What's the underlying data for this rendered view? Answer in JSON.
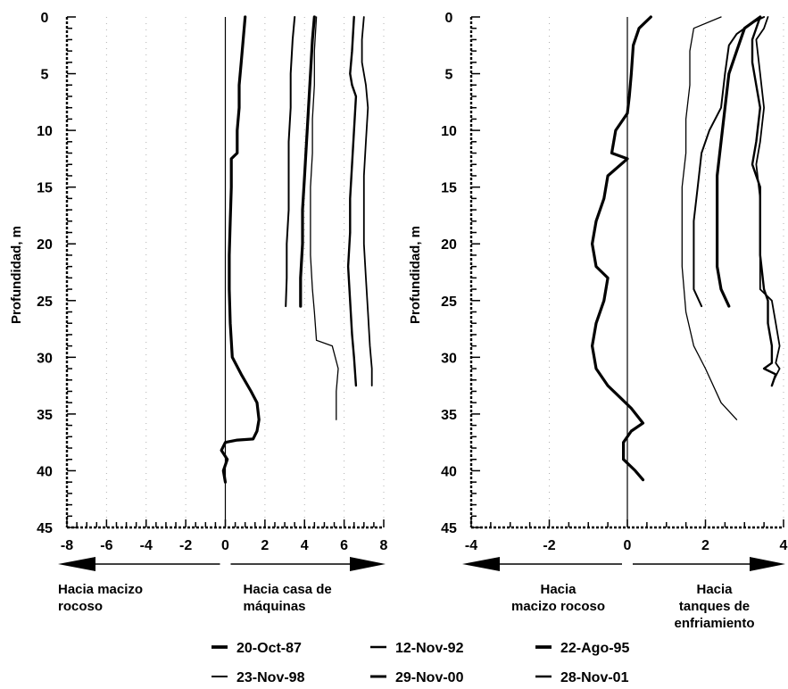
{
  "chart_data": [
    {
      "type": "line",
      "ylabel": "Profundidad, m",
      "xlim": [
        -8,
        8
      ],
      "ylim": [
        45,
        0
      ],
      "x_ticks": [
        -8,
        -6,
        -4,
        -2,
        0,
        2,
        4,
        6,
        8
      ],
      "y_ticks": [
        0,
        5,
        10,
        15,
        20,
        25,
        30,
        35,
        40,
        45
      ],
      "direction_labels": {
        "left": [
          "Hacia macizo",
          "rocoso"
        ],
        "right": [
          "Hacia  casa de",
          "máquinas"
        ]
      },
      "series": [
        {
          "name": "20-Oct-87",
          "points": [
            [
              1.0,
              0
            ],
            [
              0.9,
              2
            ],
            [
              0.8,
              4
            ],
            [
              0.7,
              6
            ],
            [
              0.7,
              8
            ],
            [
              0.6,
              10
            ],
            [
              0.6,
              12
            ],
            [
              0.3,
              12.5
            ],
            [
              0.3,
              15
            ],
            [
              0.25,
              18
            ],
            [
              0.2,
              21
            ],
            [
              0.2,
              24
            ],
            [
              0.25,
              27
            ],
            [
              0.35,
              30
            ],
            [
              0.8,
              31.5
            ],
            [
              1.3,
              33
            ],
            [
              1.6,
              34
            ],
            [
              1.7,
              35.5
            ],
            [
              1.6,
              36.5
            ],
            [
              1.4,
              37.2
            ],
            [
              0.6,
              37.3
            ],
            [
              0.0,
              37.5
            ],
            [
              -0.2,
              38.2
            ],
            [
              0.1,
              39
            ],
            [
              -0.1,
              40
            ],
            [
              0.0,
              41
            ]
          ]
        },
        {
          "name": "12-Nov-92",
          "points": [
            [
              3.5,
              0
            ],
            [
              3.4,
              2
            ],
            [
              3.3,
              5
            ],
            [
              3.3,
              8
            ],
            [
              3.2,
              11
            ],
            [
              3.2,
              14
            ],
            [
              3.2,
              17
            ],
            [
              3.1,
              20
            ],
            [
              3.1,
              23
            ],
            [
              3.05,
              25.5
            ]
          ]
        },
        {
          "name": "22-Ago-95",
          "points": [
            [
              4.5,
              0
            ],
            [
              4.4,
              2
            ],
            [
              4.3,
              5
            ],
            [
              4.2,
              8
            ],
            [
              4.1,
              11
            ],
            [
              4.0,
              14
            ],
            [
              3.9,
              17
            ],
            [
              3.9,
              20
            ],
            [
              3.8,
              23
            ],
            [
              3.8,
              25.5
            ]
          ]
        },
        {
          "name": "23-Nov-98",
          "points": [
            [
              4.6,
              0
            ],
            [
              4.5,
              3
            ],
            [
              4.5,
              6
            ],
            [
              4.4,
              9
            ],
            [
              4.4,
              12
            ],
            [
              4.3,
              15
            ],
            [
              4.3,
              18
            ],
            [
              4.3,
              21
            ],
            [
              4.4,
              24
            ],
            [
              4.5,
              26
            ],
            [
              4.6,
              28.5
            ],
            [
              5.4,
              29
            ],
            [
              5.7,
              31
            ],
            [
              5.6,
              33
            ],
            [
              5.6,
              35.5
            ]
          ]
        },
        {
          "name": "29-Nov-00",
          "points": [
            [
              6.5,
              0
            ],
            [
              6.4,
              3
            ],
            [
              6.3,
              5
            ],
            [
              6.4,
              6
            ],
            [
              6.6,
              7
            ],
            [
              6.5,
              10
            ],
            [
              6.4,
              13
            ],
            [
              6.3,
              16
            ],
            [
              6.3,
              19
            ],
            [
              6.2,
              22
            ],
            [
              6.3,
              25
            ],
            [
              6.4,
              28
            ],
            [
              6.5,
              30
            ],
            [
              6.6,
              32.5
            ]
          ]
        },
        {
          "name": "28-Nov-01",
          "points": [
            [
              7.0,
              0
            ],
            [
              6.9,
              2
            ],
            [
              6.9,
              4
            ],
            [
              7.1,
              6
            ],
            [
              7.2,
              8
            ],
            [
              7.1,
              11
            ],
            [
              7.0,
              14
            ],
            [
              7.0,
              17
            ],
            [
              7.0,
              20
            ],
            [
              7.1,
              23
            ],
            [
              7.2,
              26
            ],
            [
              7.3,
              29
            ],
            [
              7.4,
              31
            ],
            [
              7.4,
              32.5
            ]
          ]
        }
      ]
    },
    {
      "type": "line",
      "ylabel": "Profundidad, m",
      "xlim": [
        -4,
        4
      ],
      "ylim": [
        45,
        0
      ],
      "x_ticks": [
        -4,
        -2,
        0,
        2,
        4
      ],
      "y_ticks": [
        0,
        5,
        10,
        15,
        20,
        25,
        30,
        35,
        40,
        45
      ],
      "direction_labels": {
        "left": [
          "Hacia",
          "macizo rocoso"
        ],
        "right": [
          "Hacia",
          "tanques de",
          "enfriamiento"
        ]
      },
      "series": [
        {
          "name": "20-Oct-87",
          "points": [
            [
              0.6,
              0
            ],
            [
              0.3,
              1
            ],
            [
              0.15,
              2.5
            ],
            [
              0.1,
              5
            ],
            [
              0.05,
              7
            ],
            [
              0.0,
              8.5
            ],
            [
              -0.3,
              10
            ],
            [
              -0.4,
              12
            ],
            [
              0.0,
              12.5
            ],
            [
              -0.5,
              14
            ],
            [
              -0.6,
              16
            ],
            [
              -0.8,
              18
            ],
            [
              -0.9,
              20
            ],
            [
              -0.8,
              22
            ],
            [
              -0.5,
              23
            ],
            [
              -0.6,
              25
            ],
            [
              -0.8,
              27
            ],
            [
              -0.9,
              29
            ],
            [
              -0.8,
              31
            ],
            [
              -0.5,
              32.5
            ],
            [
              -0.2,
              33.5
            ],
            [
              0.1,
              34.5
            ],
            [
              0.4,
              35.8
            ],
            [
              0.1,
              36.5
            ],
            [
              -0.1,
              37.5
            ],
            [
              -0.1,
              39
            ],
            [
              0.2,
              40
            ],
            [
              0.4,
              40.8
            ]
          ]
        },
        {
          "name": "12-Nov-92",
          "points": [
            [
              3.5,
              0
            ],
            [
              3.2,
              0.5
            ],
            [
              2.8,
              1.5
            ],
            [
              2.6,
              2.5
            ],
            [
              2.5,
              5
            ],
            [
              2.4,
              8
            ],
            [
              2.1,
              10
            ],
            [
              1.9,
              12
            ],
            [
              1.8,
              15
            ],
            [
              1.7,
              18
            ],
            [
              1.7,
              20
            ],
            [
              1.7,
              22
            ],
            [
              1.7,
              24
            ],
            [
              1.9,
              25.5
            ]
          ]
        },
        {
          "name": "22-Ago-95",
          "points": [
            [
              3.4,
              0
            ],
            [
              3.0,
              1
            ],
            [
              2.8,
              3
            ],
            [
              2.6,
              5
            ],
            [
              2.5,
              8
            ],
            [
              2.4,
              11
            ],
            [
              2.3,
              14
            ],
            [
              2.3,
              17
            ],
            [
              2.3,
              20
            ],
            [
              2.3,
              22
            ],
            [
              2.4,
              24
            ],
            [
              2.6,
              25.5
            ]
          ]
        },
        {
          "name": "23-Nov-98",
          "points": [
            [
              2.4,
              0
            ],
            [
              1.7,
              1
            ],
            [
              1.6,
              3
            ],
            [
              1.6,
              6
            ],
            [
              1.5,
              9
            ],
            [
              1.5,
              12
            ],
            [
              1.4,
              15
            ],
            [
              1.4,
              18
            ],
            [
              1.4,
              22
            ],
            [
              1.5,
              26
            ],
            [
              1.7,
              29
            ],
            [
              2.0,
              31
            ],
            [
              2.4,
              34
            ],
            [
              2.8,
              35.5
            ]
          ]
        },
        {
          "name": "29-Nov-00",
          "points": [
            [
              3.4,
              0
            ],
            [
              3.2,
              2
            ],
            [
              3.2,
              4
            ],
            [
              3.3,
              6
            ],
            [
              3.4,
              8
            ],
            [
              3.3,
              11
            ],
            [
              3.2,
              13
            ],
            [
              3.4,
              15
            ],
            [
              3.4,
              18
            ],
            [
              3.4,
              21
            ],
            [
              3.5,
              24
            ],
            [
              3.6,
              25
            ],
            [
              3.6,
              27
            ],
            [
              3.7,
              29
            ],
            [
              3.7,
              30.5
            ],
            [
              3.5,
              31
            ],
            [
              3.8,
              31.5
            ],
            [
              3.7,
              32.5
            ]
          ]
        },
        {
          "name": "28-Nov-01",
          "points": [
            [
              3.6,
              0
            ],
            [
              3.5,
              1
            ],
            [
              3.3,
              2
            ],
            [
              3.4,
              5
            ],
            [
              3.5,
              8
            ],
            [
              3.4,
              11
            ],
            [
              3.3,
              13
            ],
            [
              3.4,
              16
            ],
            [
              3.4,
              19
            ],
            [
              3.4,
              22
            ],
            [
              3.4,
              24
            ],
            [
              3.7,
              25
            ],
            [
              3.8,
              27
            ],
            [
              3.9,
              29
            ],
            [
              3.8,
              30.5
            ],
            [
              3.9,
              31
            ],
            [
              3.75,
              32
            ]
          ]
        }
      ]
    }
  ],
  "legend": [
    {
      "label": "20-Oct-87"
    },
    {
      "label": "12-Nov-92"
    },
    {
      "label": "22-Ago-95"
    },
    {
      "label": "23-Nov-98"
    },
    {
      "label": "29-Nov-00"
    },
    {
      "label": "28-Nov-01"
    }
  ],
  "colors": {
    "line": "#000000",
    "grid": "#b0b0b0"
  }
}
